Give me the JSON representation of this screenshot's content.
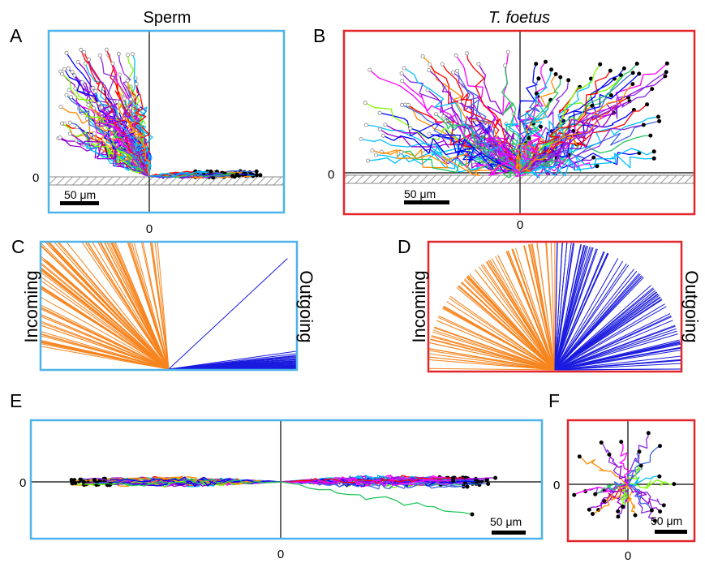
{
  "figure": {
    "panels": {
      "A": {
        "letter": "A",
        "title": "Sperm",
        "zero_x": "0",
        "zero_y": "0",
        "scale_bar": "50 μm",
        "frame_color": "#4db3ea"
      },
      "B": {
        "letter": "B",
        "title": "T. foetus",
        "zero_x": "0",
        "zero_y": "0",
        "scale_bar": "50 μm",
        "frame_color": "#e3262a"
      },
      "C": {
        "letter": "C",
        "left_label": "Incoming",
        "right_label": "Outgoing",
        "frame_color": "#4db3ea"
      },
      "D": {
        "letter": "D",
        "left_label": "Incoming",
        "right_label": "Outgoing",
        "frame_color": "#e3262a"
      },
      "E": {
        "letter": "E",
        "zero_x": "0",
        "zero_y": "0",
        "scale_bar": "50 μm",
        "frame_color": "#4db3ea"
      },
      "F": {
        "letter": "F",
        "zero_x": "0",
        "zero_y": "0",
        "scale_bar": "50 μm",
        "frame_color": "#e3262a"
      }
    },
    "colors": {
      "incoming": "#f7841e",
      "outgoing": "#1a1adf",
      "wall_hatch": "#9a9a9a",
      "track_palette": [
        "#ff0000",
        "#ff8c00",
        "#7cfc00",
        "#22c55e",
        "#00bfff",
        "#0000ff",
        "#8a2be2",
        "#ff00ff",
        "#9400d3",
        "#4169e1"
      ]
    }
  }
}
